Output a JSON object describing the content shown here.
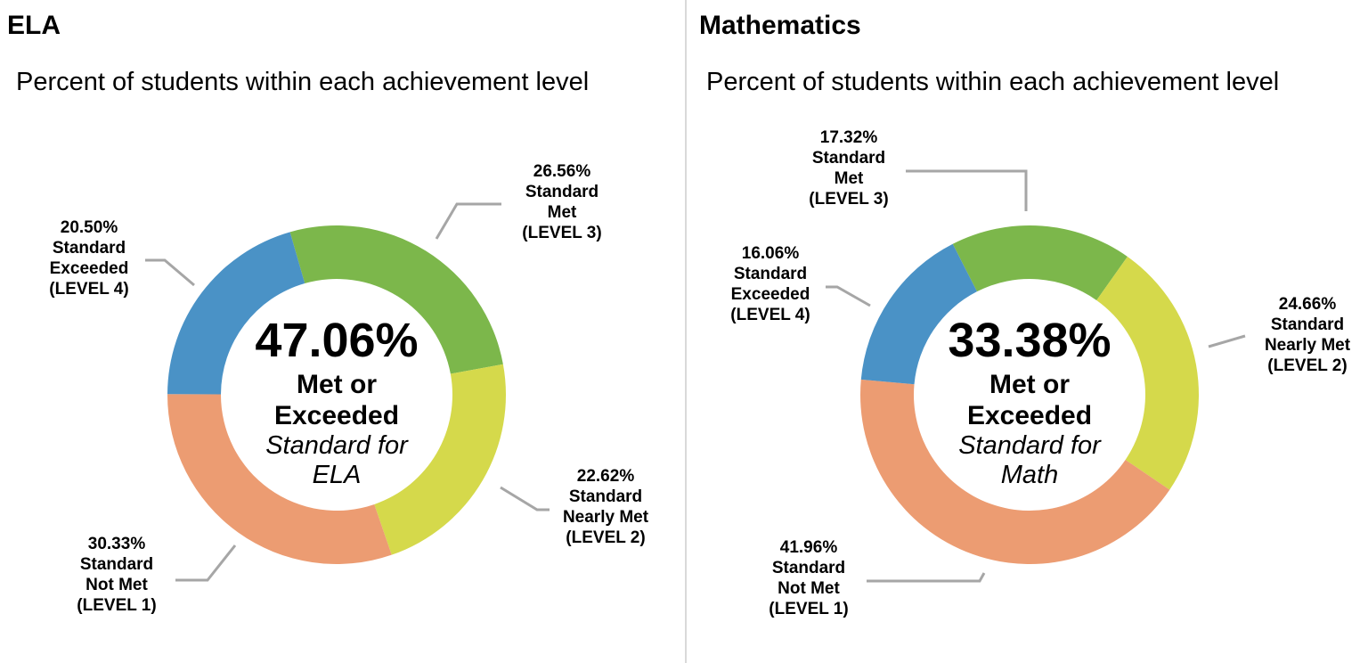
{
  "style": {
    "background": "#ffffff",
    "divider_color": "#d9d9d9",
    "connector_color": "#a6a6a6",
    "colors": {
      "standard_exceeded_blue": "#4a92c6",
      "standard_met_green": "#7cb74b",
      "standard_nearly_met_yellow": "#d5d94b",
      "standard_not_met_orange": "#ec9c72"
    }
  },
  "chart_data": [
    {
      "type": "pie",
      "subtype": "donut",
      "title": "ELA",
      "subtitle": "Percent of students within each achievement level",
      "center": {
        "value": "47.06%",
        "bold_lines": [
          "Met or",
          "Exceeded"
        ],
        "italic_lines": [
          "Standard for",
          "ELA"
        ]
      },
      "segments": [
        {
          "name": "Standard Met (LEVEL 3)",
          "value": 26.56,
          "color": "#7cb74b"
        },
        {
          "name": "Standard Nearly Met (LEVEL 2)",
          "value": 22.62,
          "color": "#d5d94b"
        },
        {
          "name": "Standard Not Met (LEVEL 1)",
          "value": 30.33,
          "color": "#ec9c72"
        },
        {
          "name": "Standard Exceeded (LEVEL 4)",
          "value": 20.5,
          "color": "#4a92c6"
        }
      ],
      "callouts": [
        {
          "lines": [
            "20.50%",
            "Standard",
            "Exceeded",
            "(LEVEL 4)"
          ]
        },
        {
          "lines": [
            "26.56%",
            "Standard",
            "Met",
            "(LEVEL 3)"
          ]
        },
        {
          "lines": [
            "22.62%",
            "Standard",
            "Nearly Met",
            "(LEVEL 2)"
          ]
        },
        {
          "lines": [
            "30.33%",
            "Standard",
            "Not Met",
            "(LEVEL 1)"
          ]
        }
      ]
    },
    {
      "type": "pie",
      "subtype": "donut",
      "title": "Mathematics",
      "subtitle": "Percent of students within each achievement level",
      "center": {
        "value": "33.38%",
        "bold_lines": [
          "Met or",
          "Exceeded"
        ],
        "italic_lines": [
          "Standard for",
          "Math"
        ]
      },
      "segments": [
        {
          "name": "Standard Met (LEVEL 3)",
          "value": 17.32,
          "color": "#7cb74b"
        },
        {
          "name": "Standard Nearly Met (LEVEL 2)",
          "value": 24.66,
          "color": "#d5d94b"
        },
        {
          "name": "Standard Not Met (LEVEL 1)",
          "value": 41.96,
          "color": "#ec9c72"
        },
        {
          "name": "Standard Exceeded (LEVEL 4)",
          "value": 16.06,
          "color": "#4a92c6"
        }
      ],
      "callouts": [
        {
          "lines": [
            "17.32%",
            "Standard",
            "Met",
            "(LEVEL 3)"
          ]
        },
        {
          "lines": [
            "16.06%",
            "Standard",
            "Exceeded",
            "(LEVEL 4)"
          ]
        },
        {
          "lines": [
            "24.66%",
            "Standard",
            "Nearly Met",
            "(LEVEL 2)"
          ]
        },
        {
          "lines": [
            "41.96%",
            "Standard",
            "Not Met",
            "(LEVEL 1)"
          ]
        }
      ]
    }
  ]
}
